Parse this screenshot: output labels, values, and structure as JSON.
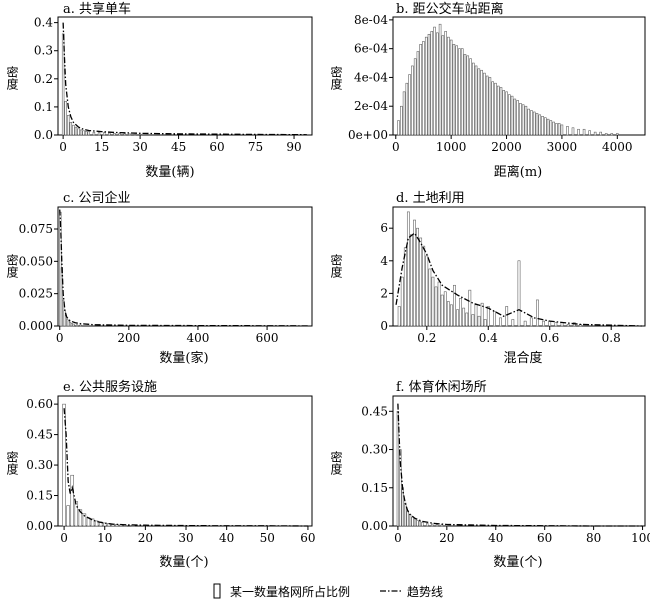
{
  "legend": {
    "bar_label": "某一数量格网所占比例",
    "trend_label": "趋势线"
  },
  "chart_data": [
    {
      "id": "a",
      "type": "bar",
      "title": "a. 共享单车",
      "xlabel": "数量(辆)",
      "ylabel": "密度",
      "xlim": [
        -2,
        97
      ],
      "ylim": [
        0,
        0.42
      ],
      "xticks": [
        0,
        15,
        30,
        45,
        60,
        75,
        90
      ],
      "yticks": [
        0.0,
        0.1,
        0.2,
        0.3,
        0.4
      ],
      "ytick_labels": [
        "0.0",
        "0.1",
        "0.2",
        "0.3",
        "0.4"
      ],
      "bars": {
        "x": [
          0,
          1,
          2,
          3,
          4,
          5,
          6,
          7,
          8,
          9,
          10,
          12,
          14,
          16,
          18,
          20,
          22,
          24,
          26,
          28,
          30
        ],
        "values": [
          0.36,
          0.12,
          0.07,
          0.045,
          0.035,
          0.028,
          0.022,
          0.018,
          0.015,
          0.013,
          0.012,
          0.01,
          0.009,
          0.008,
          0.007,
          0.006,
          0.005,
          0.004,
          0.004,
          0.003,
          0.003
        ]
      },
      "trend": {
        "x": [
          0,
          0.5,
          1,
          2,
          3,
          4,
          6,
          8,
          10,
          15,
          20,
          30,
          45,
          60,
          75,
          95
        ],
        "y": [
          0.4,
          0.28,
          0.18,
          0.1,
          0.065,
          0.045,
          0.028,
          0.02,
          0.016,
          0.012,
          0.009,
          0.006,
          0.004,
          0.003,
          0.002,
          0.001
        ]
      }
    },
    {
      "id": "b",
      "type": "bar",
      "title": "b. 距公交车站距离",
      "xlabel": "距离(m)",
      "ylabel": "密度",
      "xlim": [
        -50,
        4500
      ],
      "ylim": [
        0,
        0.00082
      ],
      "xticks": [
        0,
        1000,
        2000,
        3000,
        4000
      ],
      "yticks": [
        0,
        0.0002,
        0.0004,
        0.0006,
        0.0008
      ],
      "ytick_labels": [
        "0e+00",
        "2e-04",
        "4e-04",
        "6e-04",
        "8e-04"
      ],
      "bars": {
        "x": [
          50,
          100,
          150,
          200,
          250,
          300,
          350,
          400,
          450,
          500,
          550,
          600,
          650,
          700,
          750,
          800,
          850,
          900,
          950,
          1000,
          1050,
          1100,
          1150,
          1200,
          1250,
          1300,
          1350,
          1400,
          1450,
          1500,
          1550,
          1600,
          1650,
          1700,
          1750,
          1800,
          1850,
          1900,
          1950,
          2000,
          2050,
          2100,
          2150,
          2200,
          2250,
          2300,
          2350,
          2400,
          2450,
          2500,
          2550,
          2600,
          2650,
          2700,
          2750,
          2800,
          2850,
          2900,
          2950,
          3000,
          3100,
          3200,
          3300,
          3400,
          3500,
          3600,
          3700,
          3800,
          3900,
          4000
        ],
        "values": [
          0.0001,
          0.0002,
          0.0003,
          0.00036,
          0.00042,
          0.00048,
          0.00053,
          0.00058,
          0.00063,
          0.00065,
          0.00068,
          0.0007,
          0.00072,
          0.00075,
          0.00071,
          0.00077,
          0.00069,
          0.00072,
          0.00068,
          0.00066,
          0.00063,
          0.00062,
          0.0006,
          0.0006,
          0.00056,
          0.00055,
          0.00053,
          0.0005,
          0.00048,
          0.00046,
          0.00045,
          0.00043,
          0.00041,
          0.0004,
          0.00037,
          0.00036,
          0.00034,
          0.00033,
          0.00031,
          0.0003,
          0.00028,
          0.00027,
          0.00025,
          0.00024,
          0.00022,
          0.00021,
          0.0002,
          0.00018,
          0.00017,
          0.00016,
          0.00015,
          0.00014,
          0.00013,
          0.00012,
          0.00011,
          0.0001,
          9e-05,
          8e-05,
          8e-05,
          7e-05,
          6e-05,
          5e-05,
          4e-05,
          4e-05,
          3e-05,
          2e-05,
          2e-05,
          1e-05,
          1e-05,
          1e-05
        ]
      }
    },
    {
      "id": "c",
      "type": "bar",
      "title": "c. 公司企业",
      "xlabel": "数量(家)",
      "ylabel": "密度",
      "xlim": [
        -5,
        730
      ],
      "ylim": [
        0,
        0.092
      ],
      "xticks": [
        0,
        200,
        400,
        600
      ],
      "yticks": [
        0,
        0.025,
        0.05,
        0.075
      ],
      "ytick_labels": [
        "0.000",
        "0.025",
        "0.050",
        "0.075"
      ],
      "bars": {
        "x": [
          2,
          6,
          10,
          14,
          18,
          22,
          26,
          30,
          35,
          40,
          50,
          60
        ],
        "values": [
          0.088,
          0.045,
          0.02,
          0.012,
          0.008,
          0.005,
          0.004,
          0.003,
          0.002,
          0.0015,
          0.001,
          0.0008
        ]
      },
      "trend": {
        "x": [
          0,
          3,
          6,
          10,
          15,
          20,
          30,
          45,
          60,
          100,
          200,
          400,
          600,
          720
        ],
        "y": [
          0.09,
          0.075,
          0.05,
          0.025,
          0.012,
          0.007,
          0.004,
          0.0025,
          0.0018,
          0.001,
          0.0005,
          0.0003,
          0.0002,
          0.0001
        ]
      }
    },
    {
      "id": "d",
      "type": "bar",
      "title": "d. 土地利用",
      "xlabel": "混合度",
      "ylabel": "密度",
      "xlim": [
        0.09,
        0.91
      ],
      "ylim": [
        0,
        7.3
      ],
      "xticks": [
        0.2,
        0.4,
        0.6,
        0.8
      ],
      "yticks": [
        0,
        2,
        4,
        6
      ],
      "ytick_labels": [
        "0",
        "2",
        "4",
        "6"
      ],
      "bars": {
        "x": [
          0.11,
          0.12,
          0.13,
          0.14,
          0.15,
          0.16,
          0.17,
          0.18,
          0.19,
          0.2,
          0.21,
          0.22,
          0.23,
          0.24,
          0.25,
          0.26,
          0.27,
          0.28,
          0.29,
          0.3,
          0.31,
          0.32,
          0.33,
          0.34,
          0.35,
          0.36,
          0.37,
          0.38,
          0.39,
          0.4,
          0.42,
          0.44,
          0.46,
          0.48,
          0.5,
          0.52,
          0.54,
          0.56,
          0.58,
          0.6,
          0.62,
          0.64,
          0.66,
          0.68,
          0.7
        ],
        "values": [
          1.2,
          3.0,
          4.8,
          7.0,
          5.6,
          6.5,
          6.0,
          5.4,
          4.9,
          4.3,
          3.5,
          3.0,
          2.4,
          2.7,
          1.9,
          2.1,
          1.5,
          1.3,
          2.5,
          1.0,
          1.7,
          1.1,
          0.8,
          2.2,
          0.7,
          1.3,
          0.6,
          1.4,
          0.4,
          1.2,
          0.9,
          0.5,
          1.2,
          0.4,
          4.0,
          0.3,
          0.5,
          1.6,
          0.3,
          0.3,
          0.2,
          0.2,
          0.1,
          0.2,
          0.1
        ]
      },
      "trend": {
        "x": [
          0.1,
          0.12,
          0.14,
          0.16,
          0.18,
          0.2,
          0.22,
          0.25,
          0.3,
          0.35,
          0.4,
          0.45,
          0.5,
          0.55,
          0.6,
          0.7,
          0.8,
          0.9
        ],
        "y": [
          1.3,
          3.6,
          5.4,
          5.7,
          5.1,
          4.4,
          3.4,
          2.5,
          1.9,
          1.4,
          1.1,
          0.6,
          1.0,
          0.5,
          0.3,
          0.1,
          0.05,
          0.0
        ]
      }
    },
    {
      "id": "e",
      "type": "bar",
      "title": "e. 公共服务设施",
      "xlabel": "数量(个)",
      "ylabel": "密度",
      "xlim": [
        -1.5,
        61
      ],
      "ylim": [
        0,
        0.64
      ],
      "xticks": [
        0,
        10,
        20,
        30,
        40,
        50,
        60
      ],
      "yticks": [
        0,
        0.15,
        0.3,
        0.45,
        0.6
      ],
      "ytick_labels": [
        "0.00",
        "0.15",
        "0.30",
        "0.45",
        "0.60"
      ],
      "bars": {
        "x": [
          0,
          1,
          2,
          3,
          4,
          5,
          6,
          7,
          8,
          9,
          10,
          11,
          12,
          13,
          14,
          15,
          17,
          20
        ],
        "values": [
          0.6,
          0.1,
          0.25,
          0.12,
          0.08,
          0.06,
          0.04,
          0.035,
          0.025,
          0.02,
          0.015,
          0.012,
          0.01,
          0.008,
          0.006,
          0.005,
          0.004,
          0.003
        ]
      },
      "trend": {
        "x": [
          0,
          0.5,
          1,
          1.5,
          2,
          3,
          4,
          5,
          6,
          7,
          8,
          10,
          12,
          15,
          20,
          30,
          40,
          50,
          60
        ],
        "y": [
          0.58,
          0.45,
          0.22,
          0.16,
          0.19,
          0.1,
          0.07,
          0.05,
          0.04,
          0.03,
          0.022,
          0.014,
          0.009,
          0.006,
          0.004,
          0.002,
          0.001,
          0.001,
          0.0
        ]
      }
    },
    {
      "id": "f",
      "type": "bar",
      "title": "f. 体育休闲场所",
      "xlabel": "数量(个)",
      "ylabel": "密度",
      "xlim": [
        -2,
        101
      ],
      "ylim": [
        0,
        0.51
      ],
      "xticks": [
        0,
        20,
        40,
        60,
        80,
        100
      ],
      "yticks": [
        0,
        0.15,
        0.3,
        0.45
      ],
      "ytick_labels": [
        "0.00",
        "0.15",
        "0.30",
        "0.45"
      ],
      "bars": {
        "x": [
          0,
          1,
          2,
          3,
          4,
          5,
          6,
          7,
          8,
          9,
          10,
          12,
          14,
          16,
          18,
          20
        ],
        "values": [
          0.45,
          0.3,
          0.15,
          0.09,
          0.06,
          0.045,
          0.035,
          0.028,
          0.022,
          0.018,
          0.014,
          0.01,
          0.008,
          0.006,
          0.005,
          0.004
        ]
      },
      "trend": {
        "x": [
          0,
          0.5,
          1,
          2,
          3,
          4,
          5,
          7,
          10,
          15,
          20,
          40,
          60,
          80,
          100
        ],
        "y": [
          0.48,
          0.35,
          0.25,
          0.14,
          0.09,
          0.06,
          0.045,
          0.03,
          0.018,
          0.01,
          0.006,
          0.002,
          0.001,
          0.0,
          0.0
        ]
      }
    }
  ]
}
